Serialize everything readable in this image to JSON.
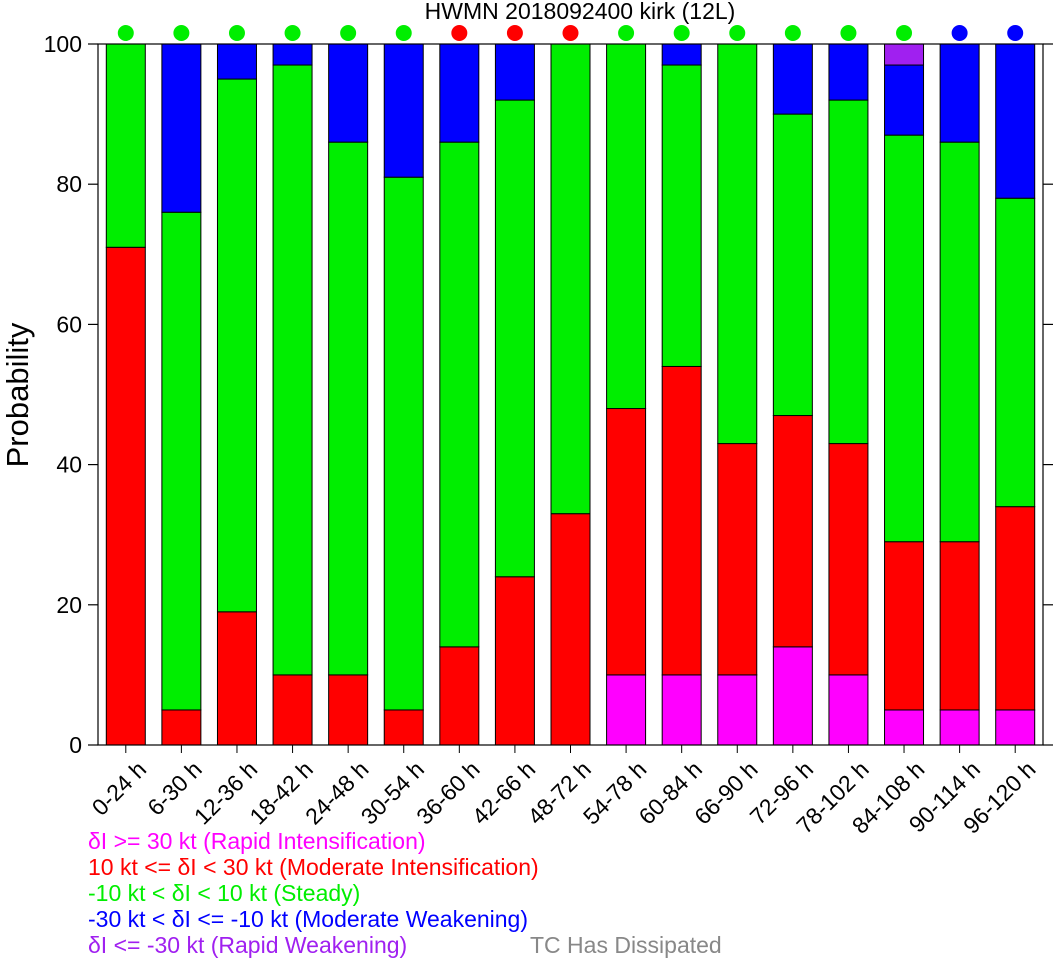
{
  "chart_data": {
    "type": "bar",
    "stacked": true,
    "title": "HWMN 2018092400 kirk (12L)",
    "ylabel": "Probability",
    "xlabel": "",
    "ylim": [
      0,
      100
    ],
    "yticks": [
      0,
      20,
      40,
      60,
      80,
      100
    ],
    "categories": [
      "0-24 h",
      "6-30 h",
      "12-36 h",
      "18-42 h",
      "24-48 h",
      "30-54 h",
      "36-60 h",
      "42-66 h",
      "48-72 h",
      "54-78 h",
      "60-84 h",
      "66-90 h",
      "72-96 h",
      "78-102 h",
      "84-108 h",
      "90-114 h",
      "96-120 h"
    ],
    "series": [
      {
        "name": "δI >= 30 kt (Rapid Intensification)",
        "color": "#ff00ff",
        "values": [
          0,
          0,
          0,
          0,
          0,
          0,
          0,
          0,
          0,
          10,
          10,
          10,
          14,
          10,
          5,
          5,
          5
        ]
      },
      {
        "name": "10 kt <= δI < 30 kt (Moderate Intensification)",
        "color": "#ff0000",
        "values": [
          71,
          5,
          19,
          10,
          10,
          5,
          14,
          24,
          33,
          38,
          44,
          33,
          33,
          33,
          24,
          24,
          29
        ]
      },
      {
        "name": "-10 kt < δI < 10 kt (Steady)",
        "color": "#00ee00",
        "values": [
          29,
          71,
          76,
          87,
          76,
          76,
          72,
          68,
          67,
          52,
          43,
          57,
          43,
          49,
          58,
          57,
          44
        ]
      },
      {
        "name": "-30 kt < δI <= -10 kt (Moderate Weakening)",
        "color": "#0000ff",
        "values": [
          0,
          24,
          5,
          3,
          14,
          19,
          14,
          8,
          0,
          0,
          3,
          0,
          10,
          8,
          10,
          14,
          22
        ]
      },
      {
        "name": "δI <= -30 kt (Rapid Weakening)",
        "color": "#a020f0",
        "values": [
          0,
          0,
          0,
          0,
          0,
          0,
          0,
          0,
          0,
          0,
          0,
          0,
          0,
          0,
          3,
          0,
          0
        ]
      }
    ],
    "indicator_dots": [
      "#00ee00",
      "#00ee00",
      "#00ee00",
      "#00ee00",
      "#00ee00",
      "#00ee00",
      "#ff0000",
      "#ff0000",
      "#ff0000",
      "#00ee00",
      "#00ee00",
      "#00ee00",
      "#00ee00",
      "#00ee00",
      "#00ee00",
      "#0000ff",
      "#0000ff"
    ],
    "grid": false,
    "legend_position": "bottom-left"
  },
  "legend": {
    "items": [
      {
        "label": "δI >= 30 kt (Rapid Intensification)",
        "color": "#ff00ff"
      },
      {
        "label": "10 kt <= δI < 30 kt (Moderate Intensification)",
        "color": "#ff0000"
      },
      {
        "label": "-10 kt < δI < 10 kt (Steady)",
        "color": "#00ee00"
      },
      {
        "label": "-30 kt < δI <= -10 kt (Moderate Weakening)",
        "color": "#0000ff"
      },
      {
        "label": "δI <= -30 kt (Rapid Weakening)",
        "color": "#a020f0"
      }
    ],
    "dissipated_label": "TC Has Dissipated",
    "dissipated_color": "#888888"
  }
}
